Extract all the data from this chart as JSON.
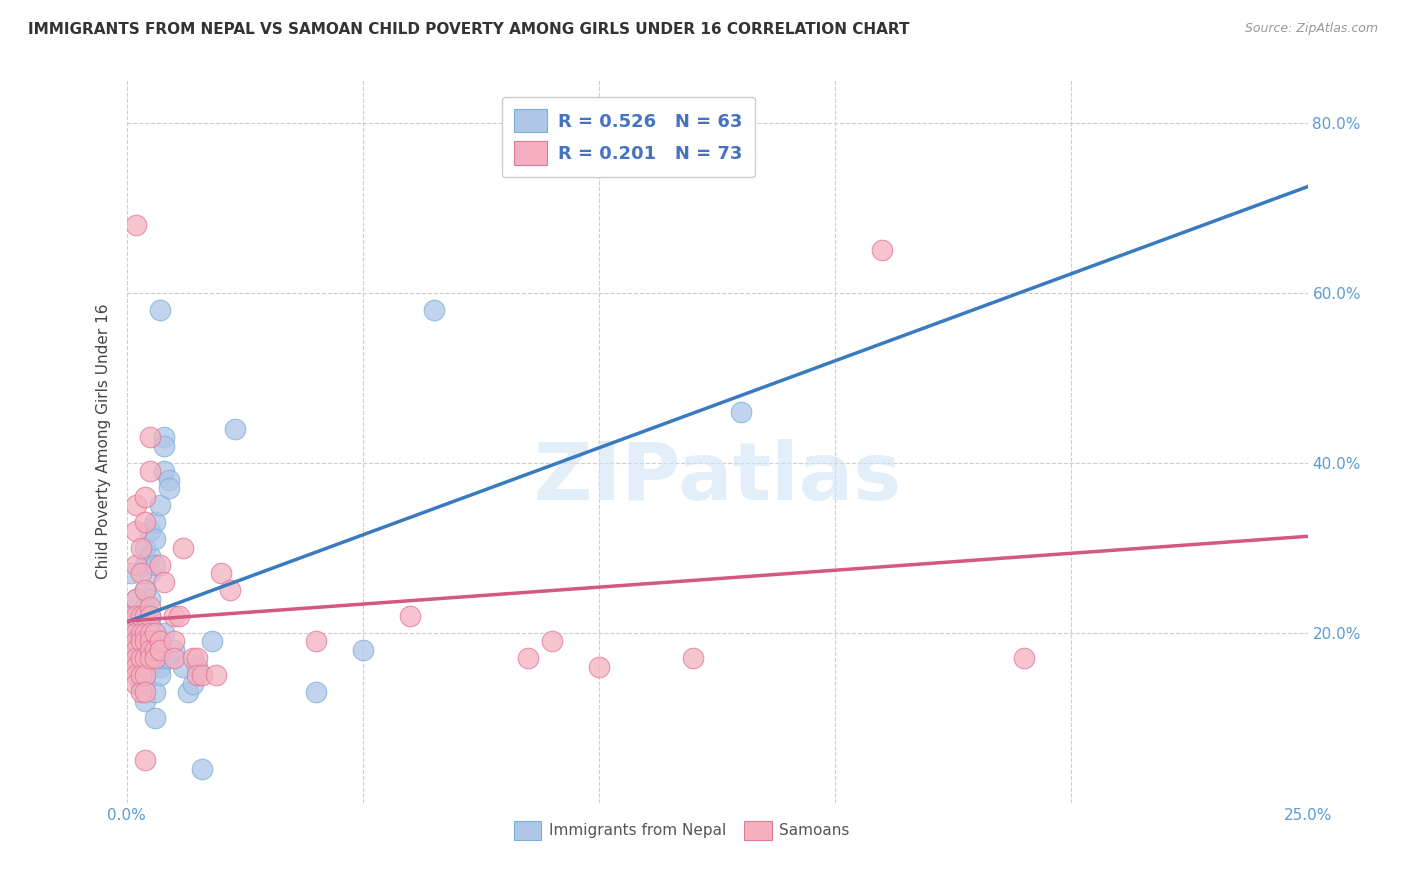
{
  "title": "IMMIGRANTS FROM NEPAL VS SAMOAN CHILD POVERTY AMONG GIRLS UNDER 16 CORRELATION CHART",
  "source": "Source: ZipAtlas.com",
  "ylabel": "Child Poverty Among Girls Under 16",
  "xlim": [
    0.0,
    0.25
  ],
  "ylim": [
    0.0,
    0.85
  ],
  "x_ticks": [
    0.0,
    0.05,
    0.1,
    0.15,
    0.2,
    0.25
  ],
  "x_tick_labels": [
    "0.0%",
    "",
    "",
    "",
    "",
    "25.0%"
  ],
  "y_ticks": [
    0.2,
    0.4,
    0.6,
    0.8
  ],
  "y_tick_labels_right": [
    "20.0%",
    "40.0%",
    "60.0%",
    "80.0%"
  ],
  "nepal_color": "#aec6e8",
  "nepal_edge_color": "#7ab0d4",
  "samoan_color": "#f4b0c0",
  "samoan_edge_color": "#e07898",
  "nepal_line_color": "#3a7bbf",
  "samoan_line_color": "#d45880",
  "dash_line_color": "#b0c8e0",
  "watermark": "ZIPatlas",
  "watermark_color": "#d0e4f4",
  "nepal_R": 0.526,
  "nepal_N": 63,
  "samoan_R": 0.201,
  "samoan_N": 73,
  "nepal_points": [
    [
      0.001,
      0.22
    ],
    [
      0.001,
      0.27
    ],
    [
      0.002,
      0.24
    ],
    [
      0.002,
      0.21
    ],
    [
      0.002,
      0.18
    ],
    [
      0.002,
      0.17
    ],
    [
      0.003,
      0.22
    ],
    [
      0.003,
      0.2
    ],
    [
      0.003,
      0.19
    ],
    [
      0.003,
      0.17
    ],
    [
      0.003,
      0.16
    ],
    [
      0.003,
      0.14
    ],
    [
      0.004,
      0.3
    ],
    [
      0.004,
      0.28
    ],
    [
      0.004,
      0.25
    ],
    [
      0.004,
      0.23
    ],
    [
      0.004,
      0.22
    ],
    [
      0.004,
      0.2
    ],
    [
      0.004,
      0.19
    ],
    [
      0.004,
      0.17
    ],
    [
      0.004,
      0.15
    ],
    [
      0.004,
      0.14
    ],
    [
      0.004,
      0.12
    ],
    [
      0.005,
      0.32
    ],
    [
      0.005,
      0.29
    ],
    [
      0.005,
      0.27
    ],
    [
      0.005,
      0.24
    ],
    [
      0.005,
      0.22
    ],
    [
      0.005,
      0.21
    ],
    [
      0.005,
      0.19
    ],
    [
      0.005,
      0.17
    ],
    [
      0.005,
      0.16
    ],
    [
      0.006,
      0.33
    ],
    [
      0.006,
      0.31
    ],
    [
      0.006,
      0.28
    ],
    [
      0.006,
      0.13
    ],
    [
      0.006,
      0.1
    ],
    [
      0.007,
      0.58
    ],
    [
      0.007,
      0.35
    ],
    [
      0.007,
      0.19
    ],
    [
      0.007,
      0.17
    ],
    [
      0.007,
      0.16
    ],
    [
      0.007,
      0.15
    ],
    [
      0.008,
      0.43
    ],
    [
      0.008,
      0.42
    ],
    [
      0.008,
      0.39
    ],
    [
      0.008,
      0.2
    ],
    [
      0.008,
      0.17
    ],
    [
      0.009,
      0.38
    ],
    [
      0.009,
      0.37
    ],
    [
      0.009,
      0.17
    ],
    [
      0.01,
      0.18
    ],
    [
      0.012,
      0.16
    ],
    [
      0.013,
      0.13
    ],
    [
      0.014,
      0.14
    ],
    [
      0.015,
      0.16
    ],
    [
      0.016,
      0.04
    ],
    [
      0.018,
      0.19
    ],
    [
      0.023,
      0.44
    ],
    [
      0.04,
      0.13
    ],
    [
      0.05,
      0.18
    ],
    [
      0.065,
      0.58
    ],
    [
      0.13,
      0.46
    ]
  ],
  "samoan_points": [
    [
      0.001,
      0.22
    ],
    [
      0.001,
      0.21
    ],
    [
      0.001,
      0.2
    ],
    [
      0.001,
      0.19
    ],
    [
      0.001,
      0.18
    ],
    [
      0.001,
      0.17
    ],
    [
      0.001,
      0.16
    ],
    [
      0.002,
      0.68
    ],
    [
      0.002,
      0.35
    ],
    [
      0.002,
      0.32
    ],
    [
      0.002,
      0.28
    ],
    [
      0.002,
      0.24
    ],
    [
      0.002,
      0.22
    ],
    [
      0.002,
      0.2
    ],
    [
      0.002,
      0.19
    ],
    [
      0.002,
      0.18
    ],
    [
      0.002,
      0.17
    ],
    [
      0.002,
      0.16
    ],
    [
      0.002,
      0.15
    ],
    [
      0.002,
      0.14
    ],
    [
      0.003,
      0.3
    ],
    [
      0.003,
      0.27
    ],
    [
      0.003,
      0.22
    ],
    [
      0.003,
      0.2
    ],
    [
      0.003,
      0.19
    ],
    [
      0.003,
      0.17
    ],
    [
      0.003,
      0.15
    ],
    [
      0.003,
      0.13
    ],
    [
      0.004,
      0.36
    ],
    [
      0.004,
      0.33
    ],
    [
      0.004,
      0.25
    ],
    [
      0.004,
      0.22
    ],
    [
      0.004,
      0.2
    ],
    [
      0.004,
      0.19
    ],
    [
      0.004,
      0.17
    ],
    [
      0.004,
      0.15
    ],
    [
      0.004,
      0.13
    ],
    [
      0.004,
      0.05
    ],
    [
      0.005,
      0.43
    ],
    [
      0.005,
      0.39
    ],
    [
      0.005,
      0.23
    ],
    [
      0.005,
      0.22
    ],
    [
      0.005,
      0.2
    ],
    [
      0.005,
      0.19
    ],
    [
      0.005,
      0.18
    ],
    [
      0.005,
      0.17
    ],
    [
      0.006,
      0.2
    ],
    [
      0.006,
      0.18
    ],
    [
      0.006,
      0.17
    ],
    [
      0.007,
      0.28
    ],
    [
      0.007,
      0.19
    ],
    [
      0.007,
      0.18
    ],
    [
      0.008,
      0.26
    ],
    [
      0.01,
      0.22
    ],
    [
      0.01,
      0.19
    ],
    [
      0.01,
      0.17
    ],
    [
      0.011,
      0.22
    ],
    [
      0.012,
      0.3
    ],
    [
      0.014,
      0.17
    ],
    [
      0.015,
      0.17
    ],
    [
      0.015,
      0.15
    ],
    [
      0.016,
      0.15
    ],
    [
      0.019,
      0.15
    ],
    [
      0.02,
      0.27
    ],
    [
      0.022,
      0.25
    ],
    [
      0.04,
      0.19
    ],
    [
      0.06,
      0.22
    ],
    [
      0.085,
      0.17
    ],
    [
      0.09,
      0.19
    ],
    [
      0.1,
      0.16
    ],
    [
      0.12,
      0.17
    ],
    [
      0.16,
      0.65
    ],
    [
      0.19,
      0.17
    ]
  ]
}
